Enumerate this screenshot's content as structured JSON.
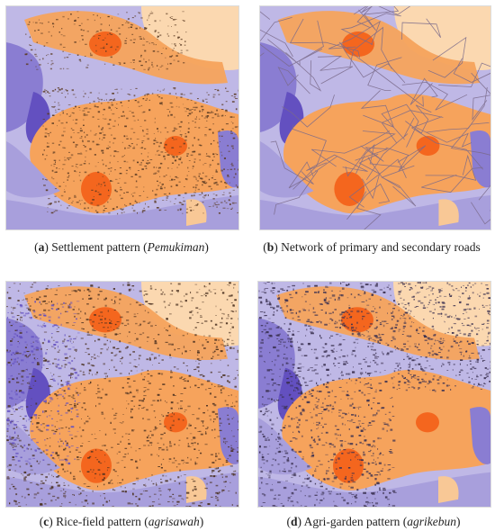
{
  "figure": {
    "panels": [
      {
        "letter": "a",
        "caption_main": "Settlement pattern (",
        "caption_term": "Pemukiman",
        "caption_end": ")",
        "overlay": "settlement"
      },
      {
        "letter": "b",
        "caption_main": "Network of primary and secondary roads",
        "caption_term": "",
        "caption_end": "",
        "overlay": "roads"
      },
      {
        "letter": "c",
        "caption_main": "Rice-field pattern (",
        "caption_term": "agrisawah",
        "caption_end": ")",
        "overlay": "ricefield"
      },
      {
        "letter": "d",
        "caption_main": "Agri-garden pattern (",
        "caption_term": "agrikebun",
        "caption_end": ")",
        "overlay": "agrigarden"
      }
    ],
    "colors": {
      "light_lavender": "#bfb8e6",
      "lavender": "#a89fdc",
      "medium_purple": "#8a7dd2",
      "dark_purple": "#6350c0",
      "light_orange": "#f8c896",
      "orange": "#f6a35c",
      "hotspot": "#f4661e",
      "peach": "#fbd8b0",
      "settlement_dark": "#5a3a22",
      "road_line": "#7a6a8a",
      "ricefield_dark": "#4a3020",
      "garden_dark": "#3a3050"
    }
  }
}
